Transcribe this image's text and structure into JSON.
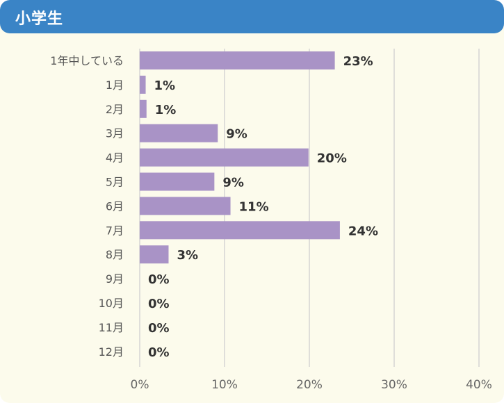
{
  "header": {
    "title": "小学生"
  },
  "chart_data": {
    "type": "bar",
    "orientation": "horizontal",
    "categories": [
      "1年中している",
      "1月",
      "2月",
      "3月",
      "4月",
      "5月",
      "6月",
      "7月",
      "8月",
      "9月",
      "10月",
      "11月",
      "12月"
    ],
    "values": [
      23,
      0.7,
      0.8,
      9.2,
      19.9,
      8.8,
      10.7,
      23.6,
      3.4,
      0,
      0,
      0,
      0
    ],
    "value_labels": [
      "23%",
      "1%",
      "1%",
      "9%",
      "20%",
      "9%",
      "11%",
      "24%",
      "3%",
      "0%",
      "0%",
      "0%",
      "0%"
    ],
    "x_ticks": [
      "0%",
      "10%",
      "20%",
      "30%",
      "40%"
    ],
    "xlim": [
      0,
      40
    ],
    "grid": true,
    "colors": {
      "bar": "#a993c6",
      "header": "#3a84c6",
      "background": "#fcfbec",
      "grid": "#cfcfcf"
    }
  }
}
